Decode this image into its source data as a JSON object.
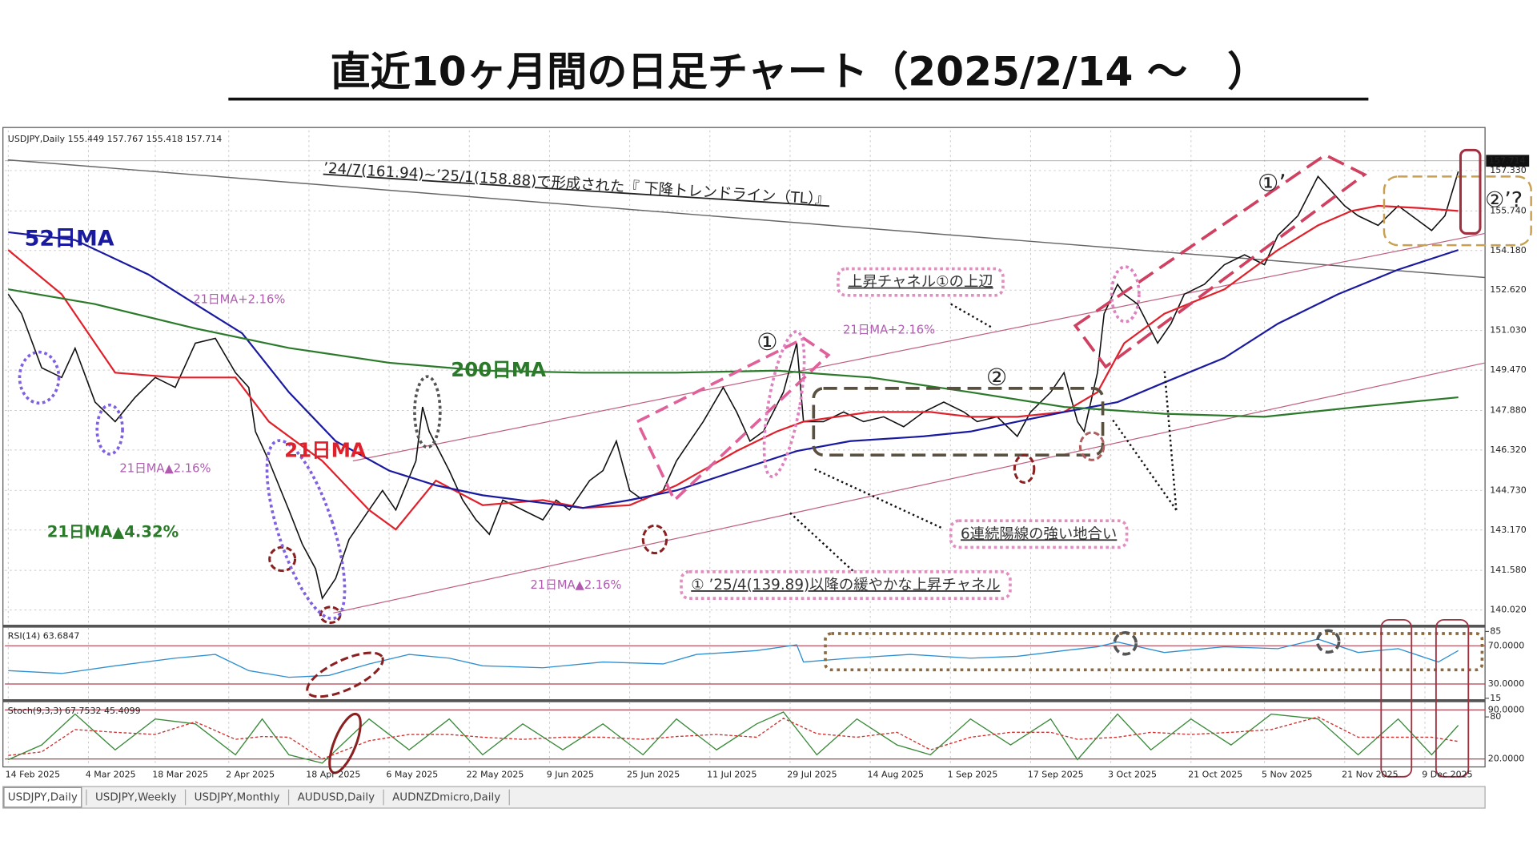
{
  "chart_data": [
    {
      "type": "line",
      "title": "直近10ヶ月間の日足チャート（2025/2/14 ～　）",
      "subtitle": "USDJPY,Daily  155.449 157.767 155.418 157.714",
      "xlim": [
        -0.5,
        221
      ],
      "ylim": [
        139.44,
        158.91
      ],
      "yticks": [
        {
          "value": 140.02,
          "label": "140.020"
        },
        {
          "value": 141.58,
          "label": "141.580"
        },
        {
          "value": 143.17,
          "label": "143.170"
        },
        {
          "value": 144.73,
          "label": "144.730"
        },
        {
          "value": 146.32,
          "label": "146.320"
        },
        {
          "value": 147.88,
          "label": "147.880"
        },
        {
          "value": 149.47,
          "label": "149.470"
        },
        {
          "value": 151.03,
          "label": "151.030"
        },
        {
          "value": 152.62,
          "label": "152.620"
        },
        {
          "value": 154.18,
          "label": "154.180"
        },
        {
          "value": 155.74,
          "label": "155.740"
        },
        {
          "value": 157.33,
          "label": "157.330"
        }
      ],
      "last_price": {
        "value": 157.714,
        "label": "157.714"
      },
      "grid": true,
      "series": [
        {
          "color": "#111111",
          "x": [
            0,
            2,
            5,
            8,
            10,
            13,
            16,
            19,
            22,
            25,
            28,
            31,
            34,
            36,
            37,
            39,
            42,
            44,
            46,
            47,
            49,
            51,
            54,
            56,
            58,
            61,
            62,
            63,
            66,
            68,
            70,
            72,
            74,
            77,
            80,
            82,
            84,
            87,
            89,
            91,
            93,
            95,
            98,
            100,
            102,
            104,
            107,
            109,
            111,
            113,
            116,
            118,
            119,
            122,
            125,
            128,
            131,
            134,
            137,
            140,
            143,
            145,
            148,
            151,
            153,
            156,
            158,
            160,
            161,
            163,
            164,
            166,
            167,
            169,
            172,
            174,
            176,
            179,
            182,
            185,
            188,
            190,
            193,
            196,
            198,
            200,
            202,
            205,
            208,
            211,
            213,
            215,
            217
          ],
          "values": [
            152.46,
            151.69,
            149.56,
            149.18,
            150.33,
            148.21,
            147.44,
            148.4,
            149.18,
            148.79,
            150.53,
            150.72,
            149.37,
            148.79,
            147.05,
            145.89,
            143.96,
            142.61,
            141.64,
            140.48,
            141.26,
            142.8,
            143.96,
            144.73,
            143.96,
            145.89,
            148.02,
            147.05,
            145.51,
            144.35,
            143.57,
            143.0,
            144.35,
            143.96,
            143.57,
            144.35,
            143.96,
            145.12,
            145.51,
            146.67,
            144.73,
            144.35,
            144.73,
            145.89,
            146.67,
            147.44,
            148.79,
            147.82,
            146.67,
            147.05,
            148.6,
            150.53,
            147.44,
            147.44,
            147.82,
            147.44,
            147.63,
            147.24,
            147.82,
            148.21,
            147.82,
            147.44,
            147.63,
            146.86,
            147.82,
            148.6,
            149.37,
            147.44,
            147.05,
            149.37,
            151.69,
            152.85,
            152.46,
            152.07,
            150.53,
            151.3,
            152.46,
            152.85,
            153.62,
            154.01,
            153.62,
            154.78,
            155.55,
            157.1,
            156.52,
            155.94,
            155.55,
            155.17,
            155.94,
            155.36,
            154.97,
            155.55,
            157.29
          ]
        },
        {
          "name": "21日MA",
          "color": "#e0202a",
          "x": [
            0,
            8,
            16,
            25,
            34,
            39,
            47,
            54,
            58,
            64,
            71,
            80,
            86,
            93,
            100,
            109,
            115,
            119,
            129,
            138,
            144,
            151,
            158,
            163,
            167,
            173,
            182,
            190,
            196,
            201,
            205,
            211,
            217
          ],
          "values": [
            154.2,
            152.46,
            149.37,
            149.18,
            149.18,
            147.44,
            145.89,
            143.96,
            143.19,
            145.12,
            144.15,
            144.35,
            144.04,
            144.15,
            144.93,
            146.28,
            147.05,
            147.44,
            147.82,
            147.82,
            147.63,
            147.63,
            147.82,
            148.6,
            150.53,
            151.69,
            152.65,
            154.2,
            155.17,
            155.74,
            155.94,
            155.86,
            155.74
          ]
        },
        {
          "name": "52日MA",
          "color": "#1a1aa0",
          "x": [
            0,
            10,
            21,
            28,
            35,
            42,
            49,
            57,
            64,
            71,
            79,
            86,
            93,
            100,
            109,
            118,
            126,
            137,
            144,
            151,
            158,
            166,
            173,
            182,
            190,
            199,
            208,
            217
          ],
          "values": [
            154.9,
            154.59,
            153.23,
            152.07,
            150.92,
            148.6,
            146.67,
            145.51,
            144.93,
            144.54,
            144.27,
            144.04,
            144.35,
            144.73,
            145.51,
            146.28,
            146.67,
            146.86,
            147.05,
            147.44,
            147.82,
            148.21,
            148.98,
            149.95,
            151.3,
            152.46,
            153.43,
            154.2
          ]
        },
        {
          "name": "200日MA",
          "color": "#2a7a2a",
          "x": [
            0,
            13,
            28,
            42,
            57,
            71,
            86,
            100,
            115,
            129,
            144,
            158,
            173,
            188,
            202,
            217
          ],
          "values": [
            152.65,
            152.07,
            151.11,
            150.34,
            149.76,
            149.45,
            149.37,
            149.37,
            149.45,
            149.18,
            148.6,
            148.02,
            147.75,
            147.63,
            148.02,
            148.4
          ]
        }
      ],
      "annotations": [
        "’24/7(161.94)~’25/1(158.88)で形成された『 下降トレンドライン（TL）』",
        "上昇チャネル①の上辺",
        "6連続陽線の強い地合い",
        "① ’25/4(139.89)以降の緩やかな上昇チャネル",
        "21日MA+2.16%",
        "21日MA+2.16%",
        "21日MA▲2.16%",
        "21日MA▲2.16%",
        "21日MA▲4.32%",
        "①",
        "②",
        "①’",
        "②’?"
      ]
    },
    {
      "type": "line",
      "subtitle": "RSI(14) 63.6847",
      "xlim": [
        -0.5,
        221
      ],
      "ylim": [
        14,
        89
      ],
      "yticks": [
        85,
        15
      ],
      "levels": [
        {
          "value": 70,
          "label": "70.0000"
        },
        {
          "value": 30,
          "label": "30.0000"
        }
      ],
      "series": [
        {
          "color": "#2f8fd0",
          "x": [
            0,
            8,
            16,
            25,
            31,
            36,
            42,
            48,
            54,
            60,
            66,
            71,
            80,
            89,
            98,
            103,
            112,
            118,
            119,
            126,
            135,
            144,
            151,
            158,
            163,
            166,
            173,
            182,
            190,
            196,
            202,
            208,
            214,
            217
          ],
          "values": [
            44,
            41,
            49,
            57,
            61,
            44,
            37,
            39,
            51,
            61,
            57,
            49,
            47,
            53,
            51,
            61,
            65,
            71,
            53,
            57,
            61,
            57,
            59,
            65,
            69,
            74,
            63,
            69,
            67,
            77,
            63,
            67,
            53,
            65
          ]
        }
      ]
    },
    {
      "type": "line",
      "subtitle": "Stoch(9,3,3) 67.7532 45.4099",
      "xlim": [
        -0.5,
        221
      ],
      "ylim": [
        10,
        101
      ],
      "yticks": [
        80
      ],
      "levels": [
        {
          "value": 90,
          "label": "90.0000"
        },
        {
          "value": 20,
          "label": "20.0000"
        }
      ],
      "xticks": [
        {
          "value": 0,
          "label": "14 Feb 2025"
        },
        {
          "value": 12,
          "label": "4 Mar 2025"
        },
        {
          "value": 22,
          "label": "18 Mar 2025"
        },
        {
          "value": 33,
          "label": "2 Apr 2025"
        },
        {
          "value": 45,
          "label": "18 Apr 2025"
        },
        {
          "value": 57,
          "label": "6 May 2025"
        },
        {
          "value": 69,
          "label": "22 May 2025"
        },
        {
          "value": 81,
          "label": "9 Jun 2025"
        },
        {
          "value": 93,
          "label": "25 Jun 2025"
        },
        {
          "value": 105,
          "label": "11 Jul 2025"
        },
        {
          "value": 117,
          "label": "29 Jul 2025"
        },
        {
          "value": 129,
          "label": "14 Aug 2025"
        },
        {
          "value": 141,
          "label": "1 Sep 2025"
        },
        {
          "value": 153,
          "label": "17 Sep 2025"
        },
        {
          "value": 165,
          "label": "3 Oct 2025"
        },
        {
          "value": 177,
          "label": "21 Oct 2025"
        },
        {
          "value": 188,
          "label": "5 Nov 2025"
        },
        {
          "value": 200,
          "label": "21 Nov 2025"
        },
        {
          "value": 212,
          "label": "9 Dec 2025"
        }
      ],
      "series": [
        {
          "color": "#3a8a3a",
          "x": [
            0,
            5,
            10,
            16,
            22,
            28,
            34,
            38,
            42,
            47,
            54,
            60,
            66,
            71,
            77,
            83,
            89,
            95,
            100,
            106,
            112,
            116,
            121,
            127,
            133,
            138,
            144,
            150,
            156,
            160,
            166,
            171,
            177,
            183,
            189,
            196,
            202,
            208,
            213,
            217
          ],
          "values": [
            19,
            40,
            84,
            33,
            77,
            70,
            26,
            77,
            26,
            14,
            77,
            33,
            77,
            26,
            70,
            33,
            70,
            26,
            77,
            33,
            70,
            87,
            26,
            77,
            40,
            26,
            77,
            40,
            77,
            19,
            84,
            33,
            77,
            40,
            84,
            77,
            26,
            77,
            26,
            68
          ]
        },
        {
          "color": "#d03030",
          "dashed": true,
          "x": [
            0,
            5,
            10,
            16,
            22,
            28,
            34,
            38,
            42,
            47,
            54,
            60,
            66,
            71,
            77,
            83,
            89,
            95,
            100,
            106,
            112,
            116,
            121,
            127,
            133,
            138,
            144,
            150,
            156,
            160,
            166,
            171,
            177,
            183,
            189,
            196,
            202,
            208,
            213,
            217
          ],
          "values": [
            25,
            30,
            62,
            58,
            55,
            73,
            48,
            52,
            51,
            20,
            46,
            55,
            55,
            51,
            48,
            51,
            51,
            48,
            52,
            55,
            51,
            78,
            56,
            51,
            58,
            33,
            51,
            58,
            58,
            48,
            51,
            58,
            55,
            58,
            62,
            80,
            51,
            51,
            51,
            45
          ]
        }
      ]
    }
  ],
  "tabs": [
    "USDJPY,Daily",
    "USDJPY,Weekly",
    "USDJPY,Monthly",
    "AUDUSD,Daily",
    "AUDNZDmicro,Daily"
  ]
}
